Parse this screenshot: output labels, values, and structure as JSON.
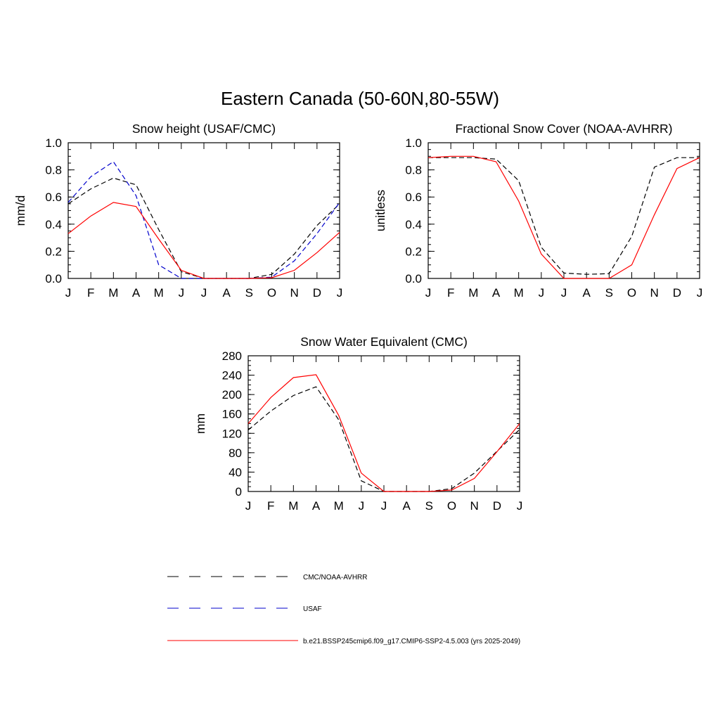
{
  "page": {
    "title": "Eastern Canada (50-60N,80-55W)"
  },
  "chart_data": [
    {
      "type": "line",
      "title": "Snow height (USAF/CMC)",
      "ylabel": "mm/d",
      "ylim": [
        0,
        1.0
      ],
      "yticks": [
        "0.0",
        "0.2",
        "0.4",
        "0.6",
        "0.8",
        "1.0"
      ],
      "categories": [
        "J",
        "F",
        "M",
        "A",
        "M",
        "J",
        "J",
        "A",
        "S",
        "O",
        "N",
        "D",
        "J"
      ],
      "series": [
        {
          "name": "CMC/NOAA-AVHRR",
          "color": "#000000",
          "dash": "dashed",
          "values": [
            0.55,
            0.66,
            0.74,
            0.69,
            0.36,
            0.05,
            0.0,
            0.0,
            0.0,
            0.03,
            0.18,
            0.39,
            0.55
          ]
        },
        {
          "name": "USAF",
          "color": "#0000cc",
          "dash": "dashed",
          "values": [
            0.56,
            0.75,
            0.86,
            0.61,
            0.1,
            0.0,
            0.0,
            0.0,
            0.0,
            0.01,
            0.13,
            0.33,
            0.56
          ]
        },
        {
          "name": "b.e21.BSSP245cmip6.f09_g17.CMIP6-SSP2-4.5.003 (yrs 2025-2049)",
          "color": "#ff0000",
          "dash": "solid",
          "values": [
            0.33,
            0.46,
            0.56,
            0.53,
            0.29,
            0.06,
            0.0,
            0.0,
            0.0,
            0.005,
            0.06,
            0.19,
            0.34
          ]
        }
      ]
    },
    {
      "type": "line",
      "title": "Fractional Snow Cover (NOAA-AVHRR)",
      "ylabel": "unitless",
      "ylim": [
        0,
        1.0
      ],
      "yticks": [
        "0.0",
        "0.2",
        "0.4",
        "0.6",
        "0.8",
        "1.0"
      ],
      "categories": [
        "J",
        "F",
        "M",
        "A",
        "M",
        "J",
        "J",
        "A",
        "S",
        "O",
        "N",
        "D",
        "J"
      ],
      "series": [
        {
          "name": "CMC/NOAA-AVHRR",
          "color": "#000000",
          "dash": "dashed",
          "values": [
            0.89,
            0.89,
            0.89,
            0.88,
            0.72,
            0.23,
            0.04,
            0.03,
            0.035,
            0.31,
            0.82,
            0.89,
            0.89
          ]
        },
        {
          "name": "b.e21.BSSP245cmip6.f09_g17.CMIP6-SSP2-4.5.003 (yrs 2025-2049)",
          "color": "#ff0000",
          "dash": "solid",
          "values": [
            0.89,
            0.9,
            0.9,
            0.86,
            0.57,
            0.18,
            0.0,
            0.0,
            0.0,
            0.1,
            0.47,
            0.81,
            0.89
          ]
        }
      ]
    },
    {
      "type": "line",
      "title": "Snow Water Equivalent (CMC)",
      "ylabel": "mm",
      "ylim": [
        0,
        280
      ],
      "yticks": [
        "0",
        "40",
        "80",
        "120",
        "160",
        "200",
        "240",
        "280"
      ],
      "categories": [
        "J",
        "F",
        "M",
        "A",
        "M",
        "J",
        "J",
        "A",
        "S",
        "O",
        "N",
        "D",
        "J"
      ],
      "series": [
        {
          "name": "CMC/NOAA-AVHRR",
          "color": "#000000",
          "dash": "dashed",
          "values": [
            127,
            166,
            198,
            216,
            148,
            22,
            0,
            0,
            0,
            6,
            38,
            83,
            128
          ]
        },
        {
          "name": "b.e21.BSSP245cmip6.f09_g17.CMIP6-SSP2-4.5.003 (yrs 2025-2049)",
          "color": "#ff0000",
          "dash": "solid",
          "values": [
            140,
            194,
            235,
            241,
            157,
            38,
            0,
            0,
            0,
            3,
            27,
            82,
            140
          ]
        }
      ]
    }
  ],
  "legend": [
    {
      "label": "CMC/NOAA-AVHRR",
      "color": "#000000",
      "dash": "dashed"
    },
    {
      "label": "USAF",
      "color": "#0000cc",
      "dash": "dashed"
    },
    {
      "label": "b.e21.BSSP245cmip6.f09_g17.CMIP6-SSP2-4.5.003 (yrs 2025-2049)",
      "color": "#ff0000",
      "dash": "solid"
    }
  ]
}
